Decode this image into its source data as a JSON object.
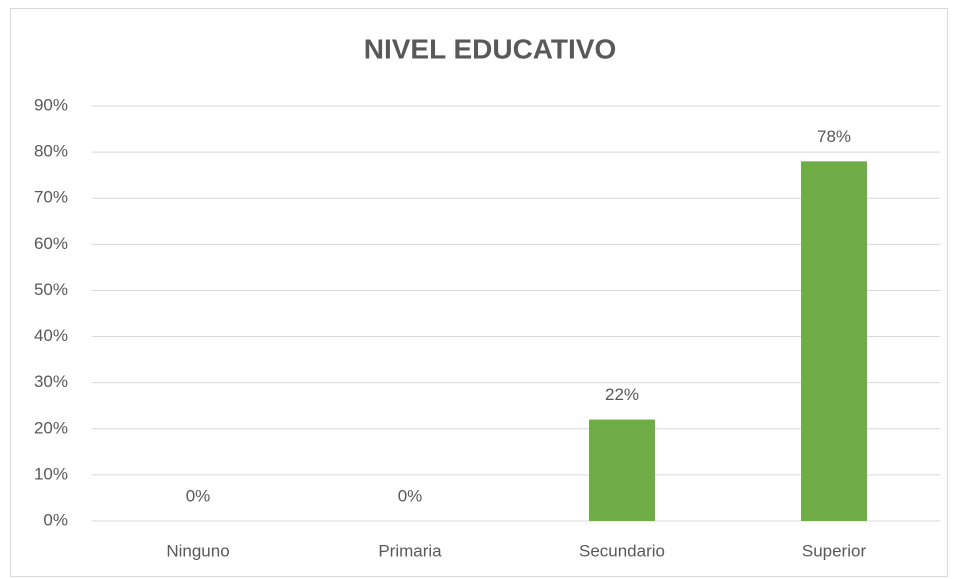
{
  "chart_data": {
    "type": "bar",
    "title": "NIVEL EDUCATIVO",
    "categories": [
      "Ninguno",
      "Primaria",
      "Secundario",
      "Superior"
    ],
    "values": [
      0,
      0,
      22,
      78
    ],
    "value_labels": [
      "0%",
      "0%",
      "22%",
      "78%"
    ],
    "color": "#70ad47",
    "ylim": [
      0,
      90
    ],
    "yticks": [
      {
        "value": 0,
        "label": "0%"
      },
      {
        "value": 10,
        "label": "10%"
      },
      {
        "value": 20,
        "label": "20%"
      },
      {
        "value": 30,
        "label": "30%"
      },
      {
        "value": 40,
        "label": "40%"
      },
      {
        "value": 50,
        "label": "50%"
      },
      {
        "value": 60,
        "label": "60%"
      },
      {
        "value": 70,
        "label": "70%"
      },
      {
        "value": 80,
        "label": "80%"
      },
      {
        "value": 90,
        "label": "90%"
      }
    ],
    "grid": true
  }
}
